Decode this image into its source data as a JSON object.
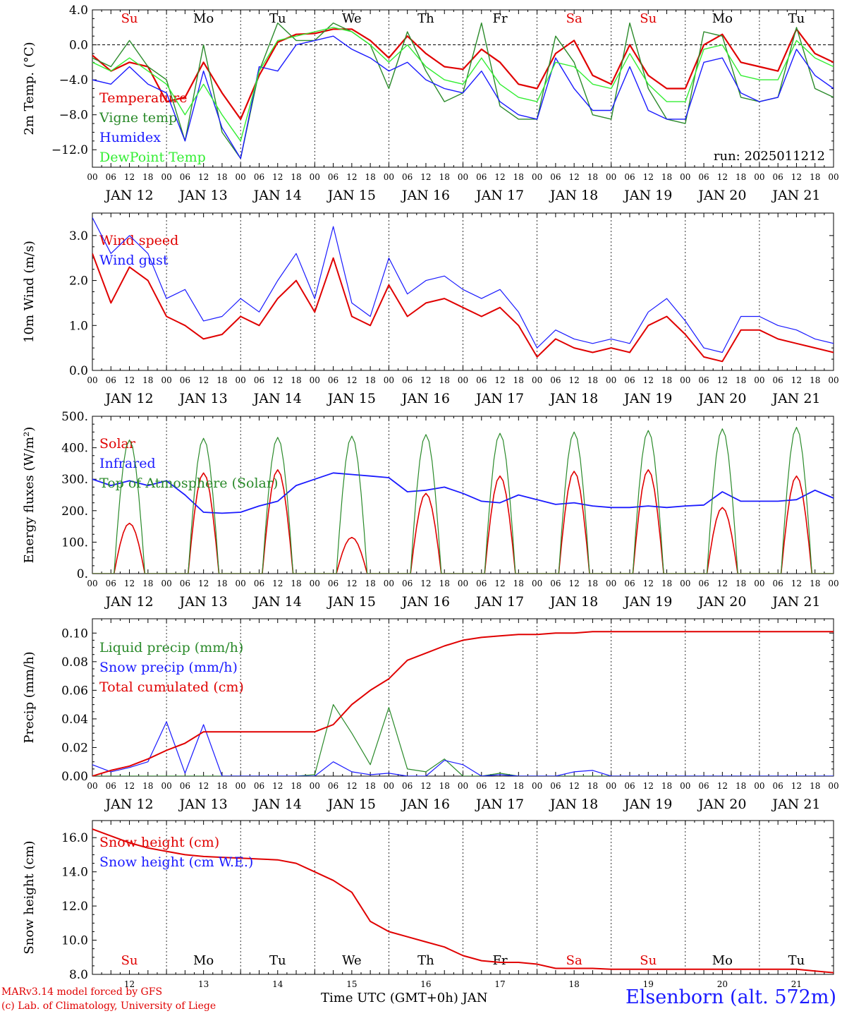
{
  "chart_data": [
    {
      "type": "line",
      "id": "temp",
      "ylabel": "2m Temp. (°C)",
      "ylim": [
        -14,
        4
      ],
      "yticks": [
        4,
        0,
        -4,
        -8,
        -12
      ],
      "ytick_labels": [
        "4.0",
        "0.0",
        "−4.0",
        "−8.0",
        "−12.0"
      ],
      "zero_line": true,
      "annotation": "run: 2025011212",
      "day_labels": [
        "Su",
        "Mo",
        "Tu",
        "We",
        "Th",
        "Fr",
        "Sa",
        "Su",
        "Mo",
        "Tu"
      ],
      "day_label_colors": [
        "#e00000",
        "#000000",
        "#000000",
        "#000000",
        "#000000",
        "#000000",
        "#e00000",
        "#e00000",
        "#000000",
        "#000000"
      ],
      "x_hours": [
        0,
        6,
        12,
        18,
        24,
        30,
        36,
        42,
        48,
        54,
        60,
        66,
        72,
        78,
        84,
        90,
        96,
        102,
        108,
        114,
        120,
        126,
        132,
        138,
        144,
        150,
        156,
        162,
        168,
        174,
        180,
        186,
        192,
        198,
        204,
        210,
        216,
        222,
        228,
        234,
        240
      ],
      "series": [
        {
          "name": "Temperature",
          "color": "#e00000",
          "width": 2.2,
          "values": [
            -1.2,
            -3.0,
            -2.0,
            -2.5,
            -6.5,
            -6.0,
            -2.0,
            -5.5,
            -8.5,
            -3.5,
            0.3,
            1.2,
            1.3,
            1.8,
            1.8,
            0.5,
            -1.5,
            1.0,
            -1.0,
            -2.5,
            -2.8,
            -0.5,
            -2.0,
            -4.5,
            -5.0,
            -1.0,
            0.5,
            -3.5,
            -4.5,
            0.0,
            -3.5,
            -5.0,
            -5.0,
            0.0,
            1.2,
            -2.0,
            -2.5,
            -3.0,
            1.8,
            -1.0,
            -2.0
          ]
        },
        {
          "name": "Vigne temp",
          "color": "#2a8a2a",
          "width": 1.4,
          "values": [
            -1.5,
            -2.5,
            0.5,
            -2.5,
            -4.0,
            -11.0,
            0.0,
            -10.0,
            -13.0,
            -3.0,
            2.5,
            0.5,
            0.5,
            2.5,
            1.5,
            0.0,
            -5.0,
            1.5,
            -3.0,
            -6.5,
            -5.5,
            2.5,
            -7.0,
            -8.5,
            -8.5,
            1.0,
            -2.0,
            -8.0,
            -8.5,
            2.5,
            -5.0,
            -8.5,
            -9.0,
            1.5,
            1.0,
            -6.0,
            -6.5,
            -6.0,
            2.0,
            -5.0,
            -6.0
          ]
        },
        {
          "name": "Humidex",
          "color": "#1a1aff",
          "width": 1.4,
          "values": [
            -4.0,
            -4.5,
            -2.5,
            -4.5,
            -5.5,
            -11.0,
            -3.0,
            -9.5,
            -13.0,
            -2.5,
            -3.0,
            0.0,
            0.5,
            1.0,
            -0.5,
            -1.5,
            -3.0,
            -2.0,
            -4.0,
            -5.0,
            -5.5,
            -3.0,
            -6.5,
            -8.0,
            -8.5,
            -1.5,
            -5.0,
            -7.5,
            -7.5,
            -2.5,
            -7.5,
            -8.5,
            -8.5,
            -2.0,
            -1.5,
            -5.5,
            -6.5,
            -6.0,
            -0.5,
            -3.5,
            -5.0
          ]
        },
        {
          "name": "DewPoint Temp",
          "color": "#33ee33",
          "width": 1.4,
          "values": [
            -2.0,
            -3.0,
            -1.5,
            -3.0,
            -4.5,
            -8.0,
            -4.5,
            -8.0,
            -11.0,
            -3.0,
            0.5,
            1.0,
            1.5,
            2.0,
            1.5,
            0.0,
            -2.0,
            0.0,
            -2.5,
            -4.0,
            -4.5,
            -1.5,
            -4.5,
            -6.0,
            -6.5,
            -2.0,
            -2.5,
            -4.5,
            -5.0,
            -1.0,
            -4.5,
            -6.5,
            -6.5,
            -0.5,
            0.0,
            -3.5,
            -4.0,
            -4.0,
            0.5,
            -1.5,
            -2.5
          ]
        }
      ]
    },
    {
      "type": "line",
      "id": "wind",
      "ylabel": "10m Wind (m/s)",
      "ylim": [
        0,
        3.5
      ],
      "yticks": [
        3,
        2,
        1,
        0
      ],
      "ytick_labels": [
        "3.0",
        "2.0",
        "1.0",
        "0.0"
      ],
      "x_hours": [
        0,
        6,
        12,
        18,
        24,
        30,
        36,
        42,
        48,
        54,
        60,
        66,
        72,
        78,
        84,
        90,
        96,
        102,
        108,
        114,
        120,
        126,
        132,
        138,
        144,
        150,
        156,
        162,
        168,
        174,
        180,
        186,
        192,
        198,
        204,
        210,
        216,
        222,
        228,
        234,
        240
      ],
      "series": [
        {
          "name": "Wind speed",
          "color": "#e00000",
          "width": 2.0,
          "values": [
            2.6,
            1.5,
            2.3,
            2.0,
            1.2,
            1.0,
            0.7,
            0.8,
            1.2,
            1.0,
            1.6,
            2.0,
            1.3,
            2.5,
            1.2,
            1.0,
            1.9,
            1.2,
            1.5,
            1.6,
            1.4,
            1.2,
            1.4,
            1.0,
            0.3,
            0.7,
            0.5,
            0.4,
            0.5,
            0.4,
            1.0,
            1.2,
            0.8,
            0.3,
            0.2,
            0.9,
            0.9,
            0.7,
            0.6,
            0.5,
            0.4
          ]
        },
        {
          "name": "Wind gust",
          "color": "#1a1aff",
          "width": 1.2,
          "values": [
            3.4,
            2.6,
            3.0,
            2.6,
            1.6,
            1.8,
            1.1,
            1.2,
            1.6,
            1.3,
            2.0,
            2.6,
            1.6,
            3.2,
            1.5,
            1.2,
            2.5,
            1.7,
            2.0,
            2.1,
            1.8,
            1.6,
            1.8,
            1.3,
            0.5,
            0.9,
            0.7,
            0.6,
            0.7,
            0.6,
            1.3,
            1.6,
            1.1,
            0.5,
            0.4,
            1.2,
            1.2,
            1.0,
            0.9,
            0.7,
            0.6
          ]
        }
      ]
    },
    {
      "type": "line",
      "id": "flux",
      "ylabel": "Energy fluxes (W/m²)",
      "ylim": [
        0,
        500
      ],
      "yticks": [
        500,
        400,
        300,
        200,
        100,
        0
      ],
      "ytick_labels": [
        "500.",
        "400.",
        "300.",
        "200.",
        "100.",
        "0."
      ],
      "x_hours": [
        0,
        6,
        12,
        18,
        24,
        30,
        36,
        42,
        48,
        54,
        60,
        66,
        72,
        78,
        84,
        90,
        96,
        102,
        108,
        114,
        120,
        126,
        132,
        138,
        144,
        150,
        156,
        162,
        168,
        174,
        180,
        186,
        192,
        198,
        204,
        210,
        216,
        222,
        228,
        234,
        240
      ],
      "series": [
        {
          "name": "Solar",
          "color": "#e00000",
          "width": 1.6,
          "daily_peak": [
            160,
            320,
            330,
            115,
            255,
            310,
            325,
            330,
            210,
            310
          ]
        },
        {
          "name": "Infrared",
          "color": "#1a1aff",
          "width": 1.8,
          "values": [
            300,
            280,
            295,
            280,
            295,
            250,
            195,
            192,
            195,
            215,
            230,
            280,
            300,
            320,
            315,
            310,
            305,
            260,
            265,
            275,
            255,
            230,
            225,
            250,
            235,
            220,
            225,
            215,
            210,
            210,
            215,
            210,
            215,
            218,
            260,
            230,
            230,
            230,
            235,
            265,
            240
          ]
        },
        {
          "name": "Top of Atmosphere (Solar)",
          "color": "#2a8a2a",
          "width": 1.2,
          "daily_peak": [
            425,
            430,
            433,
            437,
            442,
            446,
            450,
            455,
            460,
            465
          ]
        }
      ]
    },
    {
      "type": "line",
      "id": "precip",
      "ylabel": "Precip (mm/h)",
      "ylim": [
        0,
        0.11
      ],
      "yticks": [
        0.1,
        0.08,
        0.06,
        0.04,
        0.02,
        0.0
      ],
      "ytick_labels": [
        "0.10",
        "0.08",
        "0.06",
        "0.04",
        "0.02",
        "0.00"
      ],
      "x_hours": [
        0,
        6,
        12,
        18,
        24,
        30,
        36,
        42,
        48,
        54,
        60,
        66,
        72,
        78,
        84,
        90,
        96,
        102,
        108,
        114,
        120,
        126,
        132,
        138,
        144,
        150,
        156,
        162,
        168,
        174,
        180,
        186,
        192,
        198,
        204,
        210,
        216,
        222,
        228,
        234,
        240
      ],
      "series": [
        {
          "name": "Liquid precip (mm/h)",
          "color": "#2a8a2a",
          "width": 1.2,
          "values": [
            0,
            0,
            0,
            0,
            0,
            0,
            0,
            0,
            0,
            0,
            0,
            0,
            0.001,
            0.05,
            0.03,
            0.008,
            0.048,
            0.005,
            0.003,
            0.012,
            0,
            0,
            0.002,
            0,
            0,
            0,
            0,
            0,
            0,
            0,
            0,
            0,
            0,
            0,
            0,
            0,
            0,
            0,
            0,
            0,
            0
          ]
        },
        {
          "name": "Snow precip (mm/h)",
          "color": "#1a1aff",
          "width": 1.2,
          "values": [
            0.008,
            0.003,
            0.006,
            0.01,
            0.038,
            0.002,
            0.036,
            0,
            0,
            0,
            0,
            0,
            0,
            0.01,
            0.003,
            0.001,
            0.002,
            0,
            0,
            0.011,
            0.008,
            0,
            0.001,
            0,
            0,
            0,
            0.003,
            0.004,
            0,
            0,
            0,
            0,
            0,
            0,
            0,
            0,
            0,
            0,
            0,
            0,
            0
          ]
        },
        {
          "name": "Total cumulated (cm)",
          "color": "#e00000",
          "width": 2.0,
          "values": [
            0.0,
            0.004,
            0.007,
            0.012,
            0.018,
            0.023,
            0.031,
            0.031,
            0.031,
            0.031,
            0.031,
            0.031,
            0.031,
            0.036,
            0.05,
            0.06,
            0.068,
            0.081,
            0.086,
            0.091,
            0.095,
            0.097,
            0.098,
            0.099,
            0.099,
            0.1,
            0.1,
            0.101,
            0.101,
            0.101,
            0.101,
            0.101,
            0.101,
            0.101,
            0.101,
            0.101,
            0.101,
            0.101,
            0.101,
            0.101,
            0.101
          ]
        }
      ]
    },
    {
      "type": "line",
      "id": "snow",
      "ylabel": "Snow height (cm)",
      "ylim": [
        8,
        17
      ],
      "yticks": [
        16,
        14,
        12,
        10,
        8
      ],
      "ytick_labels": [
        "16.0",
        "14.0",
        "12.0",
        "10.0",
        "8.0"
      ],
      "day_labels": [
        "Su",
        "Mo",
        "Tu",
        "We",
        "Th",
        "Fr",
        "Sa",
        "Su",
        "Mo",
        "Tu"
      ],
      "day_label_colors": [
        "#e00000",
        "#000000",
        "#000000",
        "#000000",
        "#000000",
        "#000000",
        "#e00000",
        "#e00000",
        "#000000",
        "#000000"
      ],
      "bottom_day_numbers": [
        "12",
        "13",
        "14",
        "15",
        "16",
        "17",
        "18",
        "19",
        "20",
        "21"
      ],
      "x_hours": [
        0,
        6,
        12,
        18,
        24,
        30,
        36,
        42,
        48,
        54,
        60,
        66,
        72,
        78,
        84,
        90,
        96,
        102,
        108,
        114,
        120,
        126,
        132,
        138,
        144,
        150,
        156,
        162,
        168,
        174,
        180,
        186,
        192,
        198,
        204,
        210,
        216,
        222,
        228,
        234,
        240
      ],
      "series": [
        {
          "name": "Snow height (cm)",
          "color": "#e00000",
          "width": 2.0,
          "values": [
            16.5,
            16.1,
            15.7,
            15.4,
            15.2,
            15.0,
            14.9,
            14.85,
            14.8,
            14.75,
            14.7,
            14.5,
            14.0,
            13.5,
            12.8,
            11.1,
            10.5,
            10.2,
            9.9,
            9.6,
            9.1,
            8.8,
            8.7,
            8.7,
            8.6,
            8.35,
            8.35,
            8.35,
            8.3,
            8.3,
            8.3,
            8.3,
            8.3,
            8.3,
            8.3,
            8.3,
            8.3,
            8.3,
            8.3,
            8.2,
            8.1
          ]
        },
        {
          "name": "Snow height (cm W.E.)",
          "color": "#1a1aff",
          "width": 1.2,
          "values": []
        }
      ]
    }
  ],
  "date_labels": [
    "JAN 12",
    "JAN 13",
    "JAN 14",
    "JAN 15",
    "JAN 16",
    "JAN 17",
    "JAN 18",
    "JAN 19",
    "JAN 20",
    "JAN 21"
  ],
  "hour_labels": [
    "00",
    "06",
    "12",
    "18"
  ],
  "footer": {
    "model": "MARv3.14 model forced by GFS",
    "credit": "(c) Lab. of Climatology, University of Liege",
    "xaxis_title": "Time UTC (GMT+0h) JAN",
    "station": "Elsenborn (alt. 572m)"
  }
}
